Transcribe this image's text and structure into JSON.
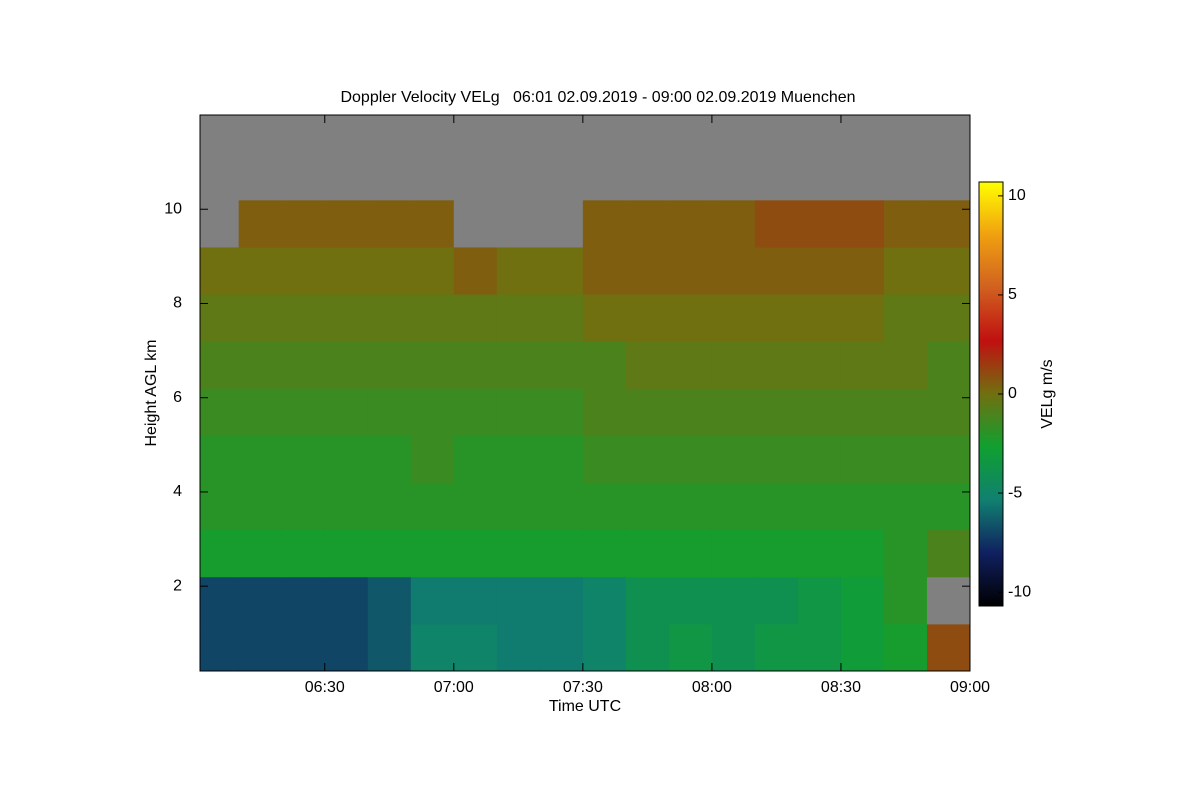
{
  "chart_data": {
    "type": "heatmap",
    "title": "Doppler Velocity VELg   06:01 02.09.2019 - 09:00 02.09.2019 Muenchen",
    "xlabel": "Time UTC",
    "ylabel": "Height AGL km",
    "colorbar_label": "VELg m/s",
    "x": [
      361,
      370,
      380,
      390,
      400,
      410,
      420,
      430,
      440,
      450,
      460,
      470,
      480,
      490,
      500,
      510,
      520,
      530,
      540
    ],
    "y": [
      0.2,
      1.2,
      2.2,
      3.2,
      4.2,
      5.2,
      6.2,
      7.2,
      8.2,
      9.2,
      10.2,
      11.2,
      12
    ],
    "z": [
      [
        -7,
        -7,
        -7,
        -7,
        -6.5,
        -5,
        -5,
        -5.5,
        -5.5,
        -5,
        -4,
        -3.5,
        -4,
        -3.5,
        -3.5,
        -3,
        -2.5,
        1
      ],
      [
        -7,
        -7,
        -7,
        -7,
        -6.5,
        -5.5,
        -5.5,
        -5.5,
        -5.5,
        -5,
        -4,
        -4,
        -4,
        -4,
        -3.5,
        -3,
        -2,
        null
      ],
      [
        -2.5,
        -2.5,
        -2.5,
        -2.5,
        -2.5,
        -2.5,
        -2.5,
        -2.5,
        -2.5,
        -2.5,
        -2.5,
        -2.5,
        -2.5,
        -2.5,
        -2.5,
        -2.5,
        -2,
        -1
      ],
      [
        -2,
        -2,
        -2,
        -2,
        -2,
        -2,
        -2,
        -2,
        -2,
        -2,
        -2,
        -2,
        -2,
        -2,
        -2,
        -2,
        -2,
        -2
      ],
      [
        -2,
        -2,
        -2,
        -2,
        -2,
        -1.5,
        -2,
        -2,
        -2,
        -1.5,
        -1.5,
        -1.5,
        -1.5,
        -1.5,
        -1.5,
        -1.5,
        -1.5,
        -1.5
      ],
      [
        -1.5,
        -1.5,
        -1.5,
        -1.5,
        -1.5,
        -1.5,
        -1.5,
        -1.5,
        -1.5,
        -1,
        -1,
        -1,
        -1,
        -1,
        -1,
        -1,
        -1,
        -1
      ],
      [
        -1,
        -1,
        -1,
        -1,
        -1,
        -1,
        -1,
        -1,
        -1,
        -1,
        -0.5,
        -0.5,
        -0.5,
        -0.5,
        -0.5,
        -0.5,
        -0.5,
        -1
      ],
      [
        -0.5,
        -0.5,
        -0.5,
        -0.5,
        -0.5,
        -0.5,
        -0.5,
        -0.5,
        -0.5,
        0,
        0,
        0,
        0,
        0,
        0,
        0,
        -0.5,
        -0.5
      ],
      [
        0,
        0,
        0,
        0,
        0,
        0,
        0.5,
        0,
        0,
        0.5,
        0.5,
        0.5,
        0.5,
        0.5,
        0.5,
        0.5,
        0,
        0
      ],
      [
        null,
        0.5,
        0.5,
        0.5,
        0.5,
        0.5,
        null,
        null,
        null,
        0.5,
        0.5,
        0.5,
        0.5,
        1,
        1,
        1,
        0.5,
        0.5
      ],
      [
        null,
        null,
        null,
        null,
        null,
        null,
        null,
        null,
        null,
        null,
        null,
        null,
        null,
        null,
        null,
        null,
        null,
        null
      ],
      [
        null,
        null,
        null,
        null,
        null,
        null,
        null,
        null,
        null,
        null,
        null,
        null,
        null,
        null,
        null,
        null,
        null,
        null
      ]
    ],
    "xlim": [
      361,
      540
    ],
    "xticks": [
      {
        "value": 390,
        "label": "06:30"
      },
      {
        "value": 420,
        "label": "07:00"
      },
      {
        "value": 450,
        "label": "07:30"
      },
      {
        "value": 480,
        "label": "08:00"
      },
      {
        "value": 510,
        "label": "08:30"
      },
      {
        "value": 540,
        "label": "09:00"
      }
    ],
    "ylim": [
      0.2,
      12
    ],
    "yticks": [
      2,
      4,
      6,
      8,
      10
    ],
    "zlim": [
      -10.7,
      10.7
    ],
    "cticks": [
      -10,
      -5,
      0,
      5,
      10
    ],
    "colormap": [
      "#000000",
      "#102060",
      "#108070",
      "#10a030",
      "#707010",
      "#c01010",
      "#d06020",
      "#f0a010",
      "#ffff00"
    ],
    "nan_color": "#808080"
  }
}
